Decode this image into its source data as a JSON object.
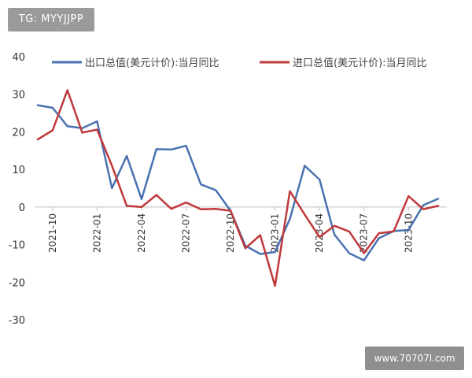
{
  "watermark": {
    "text": "TG: MYYJJPP"
  },
  "site_badge": {
    "text": "www.70707l.com"
  },
  "chart_data": {
    "type": "line",
    "title": "",
    "xlabel": "",
    "ylabel": "",
    "ylim": [
      -30,
      40
    ],
    "y_ticks": [
      40,
      30,
      20,
      10,
      0,
      -10,
      -20,
      -30
    ],
    "x_tick_labels": [
      "2021-10",
      "2022-01",
      "2022-04",
      "2022-07",
      "2022-10",
      "2023-01",
      "2023-04",
      "2023-07",
      "2023-10"
    ],
    "x_tick_positions": [
      1,
      4,
      7,
      10,
      13,
      16,
      19,
      22,
      25
    ],
    "x": [
      0,
      1,
      2,
      3,
      4,
      5,
      6,
      7,
      8,
      9,
      10,
      11,
      12,
      13,
      14,
      15,
      16,
      17,
      18,
      19,
      20,
      21,
      22,
      23,
      24,
      25,
      26,
      27
    ],
    "series": [
      {
        "name": "出口总值(美元计价):当月同比",
        "color": "#4a72b0",
        "values": [
          27.1,
          26.4,
          21.5,
          21.0,
          22.8,
          5.0,
          13.6,
          2.1,
          15.4,
          15.3,
          16.3,
          6.0,
          4.5,
          -1.0,
          -10.3,
          -12.5,
          -12.0,
          -3.2,
          11.0,
          7.3,
          -7.3,
          -12.3,
          -14.2,
          -8.3,
          -6.4,
          -6.1,
          0.5,
          2.2
        ]
      },
      {
        "name": "进口总值(美元计价):当月同比",
        "color": "#c0393b",
        "values": [
          18.0,
          20.4,
          31.1,
          19.8,
          20.6,
          11.0,
          0.3,
          0.0,
          3.2,
          -0.5,
          1.2,
          -0.6,
          -0.5,
          -1.0,
          -11.0,
          -7.5,
          -21.0,
          4.2,
          -2.0,
          -8.0,
          -5.0,
          -6.5,
          -12.3,
          -7.0,
          -6.5,
          2.9,
          -0.6,
          0.3
        ]
      }
    ],
    "legend_position": "top",
    "grid": false
  }
}
